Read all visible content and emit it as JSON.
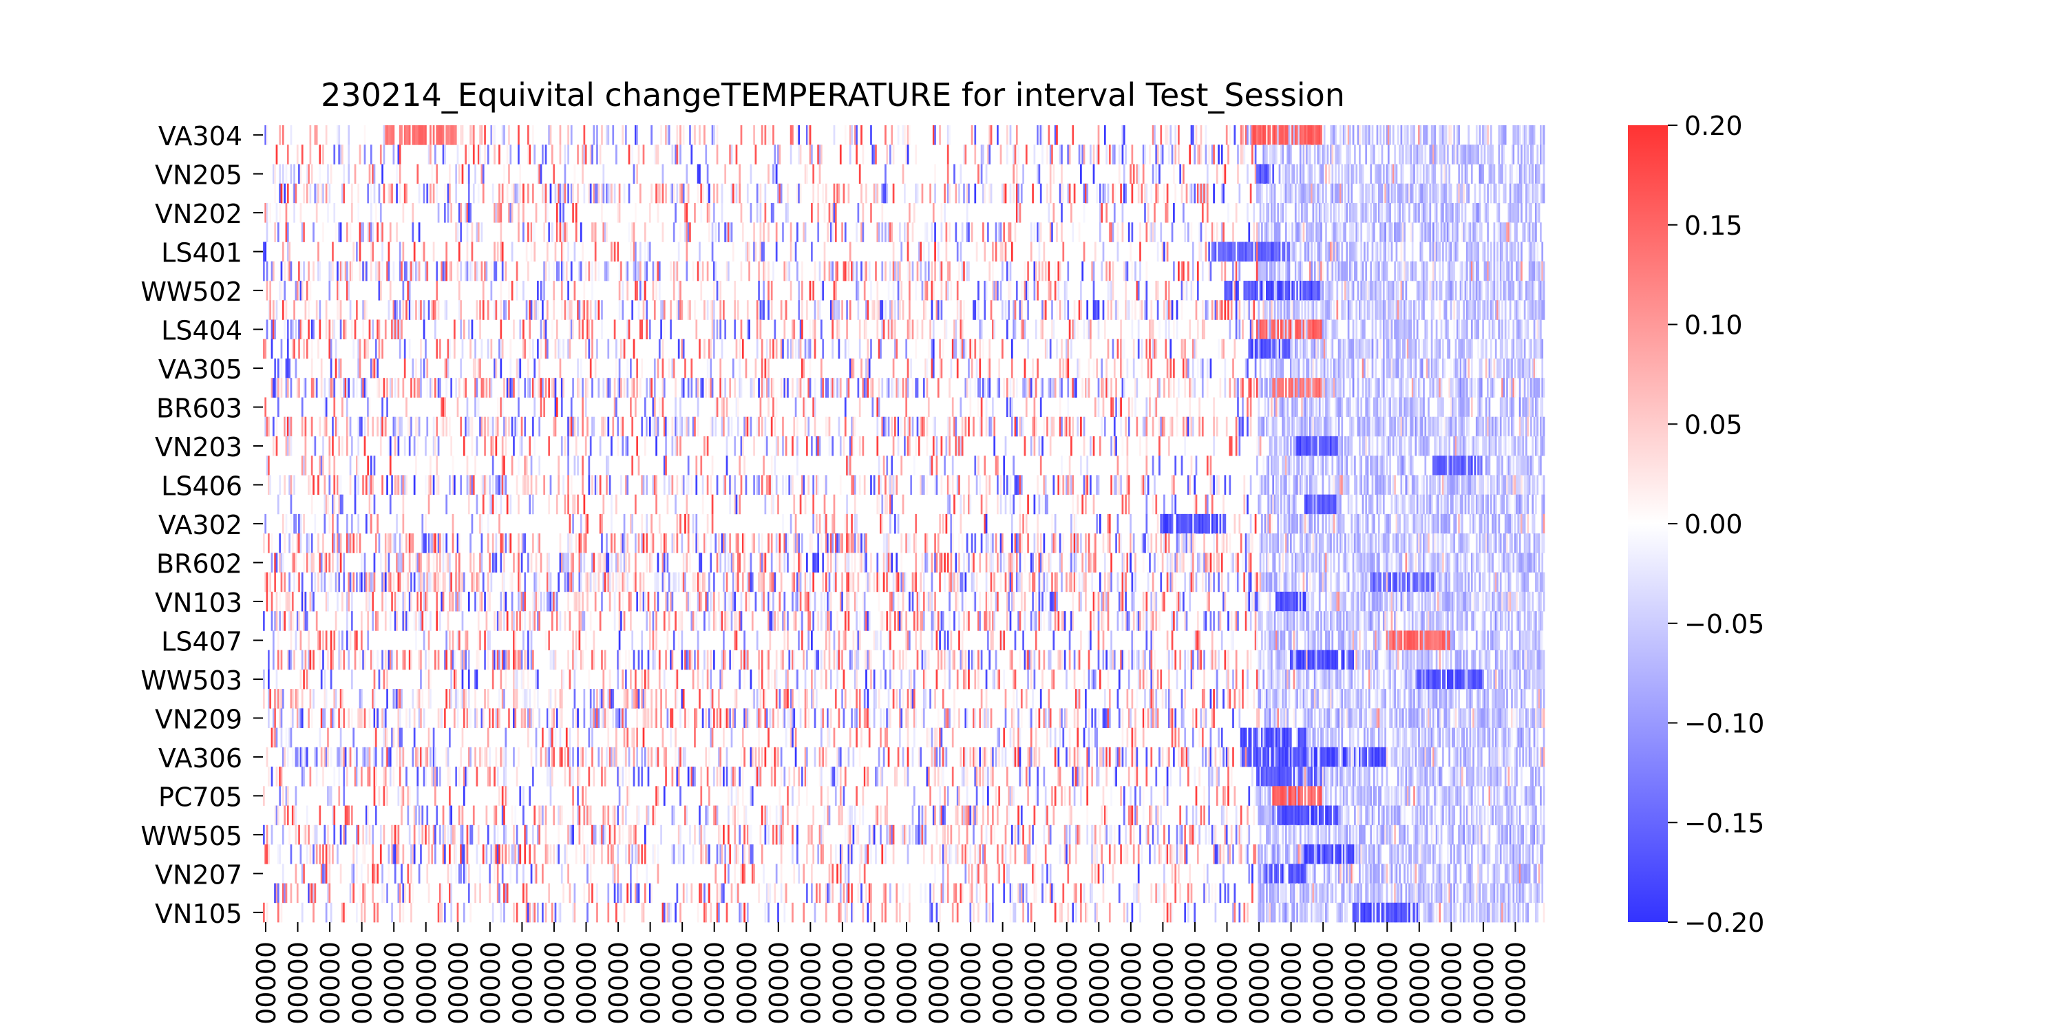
{
  "chart_data": {
    "type": "heatmap",
    "title": "230214_Equivital changeTEMPERATURE for interval Test_Session",
    "xlabel": "",
    "ylabel": "",
    "row_tick_labels": [
      "VA304",
      "VN205",
      "VN202",
      "LS401",
      "WW502",
      "LS404",
      "VA305",
      "BR603",
      "VN203",
      "LS406",
      "VA302",
      "BR602",
      "VN103",
      "LS407",
      "WW503",
      "VN209",
      "VA306",
      "PC705",
      "WW505",
      "VN207",
      "VN105"
    ],
    "row_count": 41,
    "column_count": 800,
    "x_tick_count": 40,
    "x_tick_label_visible": "00000",
    "colorbar": {
      "min": -0.2,
      "max": 0.2,
      "ticks": [
        0.2,
        0.15,
        0.1,
        0.05,
        0.0,
        -0.05,
        -0.1,
        -0.15,
        -0.2
      ],
      "tick_labels": [
        "0.20",
        "0.15",
        "0.10",
        "0.05",
        "0.00",
        "−0.05",
        "−0.10",
        "−0.15",
        "−0.20"
      ]
    },
    "colormap": {
      "negative": "#3333ff",
      "zero": "#ffffff",
      "positive": "#ff3333"
    },
    "value_note": "Cell values are dense per-row per-sample temperature changes within [-0.20, 0.20]; rendered pattern is approximated.",
    "hotspots": [
      {
        "row": 0,
        "from_col": 75,
        "to_col": 120,
        "value": 0.16
      },
      {
        "row": 0,
        "from_col": 610,
        "to_col": 660,
        "value": 0.18
      },
      {
        "row": 2,
        "from_col": 620,
        "to_col": 630,
        "value": -0.2
      },
      {
        "row": 6,
        "from_col": 590,
        "to_col": 640,
        "value": -0.18
      },
      {
        "row": 8,
        "from_col": 600,
        "to_col": 660,
        "value": -0.2
      },
      {
        "row": 10,
        "from_col": 620,
        "to_col": 660,
        "value": 0.18
      },
      {
        "row": 11,
        "from_col": 615,
        "to_col": 640,
        "value": -0.2
      },
      {
        "row": 13,
        "from_col": 630,
        "to_col": 660,
        "value": 0.16
      },
      {
        "row": 16,
        "from_col": 645,
        "to_col": 670,
        "value": -0.2
      },
      {
        "row": 17,
        "from_col": 730,
        "to_col": 760,
        "value": -0.19
      },
      {
        "row": 19,
        "from_col": 650,
        "to_col": 670,
        "value": -0.2
      },
      {
        "row": 20,
        "from_col": 560,
        "to_col": 600,
        "value": -0.2
      },
      {
        "row": 23,
        "from_col": 690,
        "to_col": 730,
        "value": -0.18
      },
      {
        "row": 24,
        "from_col": 630,
        "to_col": 650,
        "value": -0.2
      },
      {
        "row": 26,
        "from_col": 700,
        "to_col": 740,
        "value": 0.17
      },
      {
        "row": 27,
        "from_col": 640,
        "to_col": 680,
        "value": -0.2
      },
      {
        "row": 28,
        "from_col": 720,
        "to_col": 760,
        "value": -0.2
      },
      {
        "row": 31,
        "from_col": 610,
        "to_col": 650,
        "value": -0.2
      },
      {
        "row": 32,
        "from_col": 610,
        "to_col": 700,
        "value": -0.2
      },
      {
        "row": 33,
        "from_col": 620,
        "to_col": 660,
        "value": -0.19
      },
      {
        "row": 34,
        "from_col": 630,
        "to_col": 660,
        "value": 0.18
      },
      {
        "row": 35,
        "from_col": 630,
        "to_col": 670,
        "value": -0.2
      },
      {
        "row": 37,
        "from_col": 650,
        "to_col": 680,
        "value": -0.2
      },
      {
        "row": 38,
        "from_col": 625,
        "to_col": 650,
        "value": -0.2
      },
      {
        "row": 40,
        "from_col": 680,
        "to_col": 720,
        "value": -0.2
      }
    ]
  }
}
